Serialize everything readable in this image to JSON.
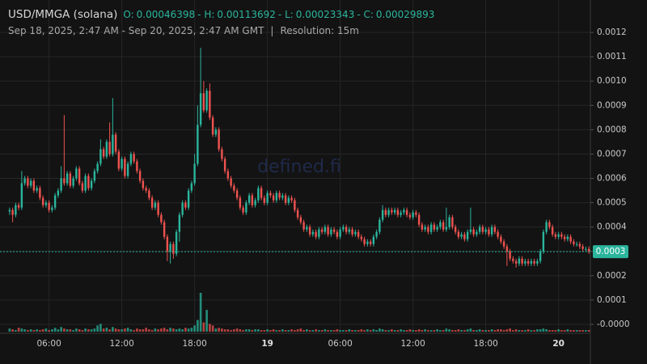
{
  "header": {
    "symbol": "USD/MMGA (solana)",
    "ohlc": [
      {
        "label": "O:",
        "value": 0.00046398
      },
      {
        "label": "- H:",
        "value": 0.00113692
      },
      {
        "label": "- L:",
        "value": 0.00023343
      },
      {
        "label": "- C:",
        "value": 0.00029893
      }
    ],
    "range": "Sep 18, 2025, 2:47 AM - Sep 20, 2025, 2:47 AM GMT",
    "separator": "|",
    "resolution": "Resolution: 15m"
  },
  "chart_data": {
    "type": "candlestick",
    "watermark": "defined.fi",
    "up_color": "#2bb59d",
    "down_color": "#ef5350",
    "grid": true,
    "ylim": [
      -3e-05,
      0.0013
    ],
    "yticks": [
      0.0012,
      0.0011,
      {
        "value": 0.001,
        "label": "0.0010"
      },
      0.0009,
      0.0008,
      0.0007,
      0.0006,
      0.0005,
      0.0004,
      0.0003,
      0.0002,
      0.0001,
      {
        "value": 0,
        "label": "-0.0000"
      }
    ],
    "xticks": [
      {
        "value": 13,
        "label": "06:00"
      },
      {
        "value": 37,
        "label": "12:00"
      },
      {
        "value": 61,
        "label": "18:00"
      },
      {
        "value": 85,
        "label": "19"
      },
      {
        "value": 109,
        "label": "06:00"
      },
      {
        "value": 133,
        "label": "12:00"
      },
      {
        "value": 157,
        "label": "18:00"
      },
      {
        "value": 181,
        "label": "20"
      }
    ],
    "last_label": "0.0003",
    "open": [
      0.00046398,
      0.00047,
      0.00045,
      0.00049,
      0.00048,
      0.00058,
      0.0006,
      0.00057,
      0.00059,
      0.00055,
      0.00056,
      0.00052,
      0.00049,
      0.0005,
      0.00047,
      0.00048,
      0.00053,
      0.00055,
      0.0006,
      0.00058,
      0.00062,
      0.00057,
      0.0006,
      0.00064,
      0.00058,
      0.00055,
      0.00061,
      0.00056,
      0.00059,
      0.00063,
      0.00066,
      0.00072,
      0.00069,
      0.00075,
      0.0007,
      0.00078,
      0.00071,
      0.00064,
      0.00068,
      0.00061,
      0.00066,
      0.0007,
      0.00067,
      0.00063,
      0.00059,
      0.00056,
      0.00055,
      0.00052,
      0.00048,
      0.0005,
      0.00045,
      0.00042,
      0.00036,
      0.0003,
      0.00033,
      0.00029,
      0.00038,
      0.00045,
      0.0005,
      0.00048,
      0.00055,
      0.00058,
      0.00066,
      0.00082,
      0.00095,
      0.00088,
      0.00096,
      0.00085,
      0.00078,
      0.0008,
      0.00072,
      0.00068,
      0.00063,
      0.0006,
      0.00057,
      0.00055,
      0.00052,
      0.00048,
      0.00046,
      0.0005,
      0.00053,
      0.00049,
      0.00051,
      0.00056,
      0.00052,
      0.0005,
      0.00054,
      0.00053,
      0.00051,
      0.00054,
      0.00052,
      0.00053,
      0.0005,
      0.00052,
      0.00051,
      0.00047,
      0.00044,
      0.00042,
      0.00039,
      0.0004,
      0.00037,
      0.00038,
      0.00036,
      0.00039,
      0.00038,
      0.0004,
      0.00037,
      0.00039,
      0.00038,
      0.00036,
      0.00039,
      0.0004,
      0.00038,
      0.00039,
      0.00037,
      0.00038,
      0.00036,
      0.00035,
      0.00033,
      0.00034,
      0.00033,
      0.00036,
      0.00038,
      0.00043,
      0.00047,
      0.00045,
      0.00047,
      0.00046,
      0.00047,
      0.00045,
      0.00046,
      0.00047,
      0.00045,
      0.00044,
      0.00046,
      0.00045,
      0.00041,
      0.00039,
      0.0004,
      0.00038,
      0.00041,
      0.00039,
      0.0004,
      0.00042,
      0.00039,
      0.0004,
      0.00044,
      0.0004,
      0.00038,
      0.00036,
      0.00037,
      0.00035,
      0.00038,
      0.00039,
      0.00037,
      0.00038,
      0.0004,
      0.00038,
      0.00039,
      0.00037,
      0.0004,
      0.00038,
      0.00036,
      0.00034,
      0.00032,
      0.0003,
      0.00027,
      0.00026,
      0.00025,
      0.00027,
      0.00025,
      0.00026,
      0.00025,
      0.00026,
      0.00025,
      0.00026,
      0.0003,
      0.00038,
      0.00042,
      0.0004,
      0.00037,
      0.00036,
      0.00037,
      0.00036,
      0.00035,
      0.00036,
      0.00034,
      0.00033,
      0.00033,
      0.00032,
      0.00031,
      0.00031
    ],
    "high": [
      0.00048,
      0.00048,
      0.0005,
      0.0005,
      0.00063,
      0.00061,
      0.00061,
      0.0006,
      0.0006,
      0.00057,
      0.00057,
      0.00053,
      0.00051,
      0.00051,
      0.00049,
      0.00054,
      0.00056,
      0.00065,
      0.00086,
      0.00063,
      0.00063,
      0.00061,
      0.00065,
      0.00065,
      0.00059,
      0.00062,
      0.00062,
      0.0006,
      0.00064,
      0.00067,
      0.00076,
      0.00073,
      0.00076,
      0.00083,
      0.00093,
      0.00079,
      0.00072,
      0.00069,
      0.00069,
      0.00067,
      0.00071,
      0.00071,
      0.00068,
      0.00064,
      0.0006,
      0.00057,
      0.00056,
      0.00053,
      0.00051,
      0.00051,
      0.00046,
      0.00043,
      0.00037,
      0.00034,
      0.00034,
      0.00039,
      0.00046,
      0.00051,
      0.00051,
      0.00056,
      0.00059,
      0.0007,
      0.0009,
      0.00113692,
      0.001,
      0.00097,
      0.00099,
      0.00086,
      0.00081,
      0.00081,
      0.00073,
      0.00069,
      0.00064,
      0.00061,
      0.00058,
      0.00056,
      0.00053,
      0.00049,
      0.00051,
      0.00054,
      0.00054,
      0.00052,
      0.00057,
      0.00057,
      0.00053,
      0.00055,
      0.00055,
      0.00054,
      0.00055,
      0.00055,
      0.00054,
      0.00054,
      0.00053,
      0.00053,
      0.00052,
      0.00048,
      0.00045,
      0.00043,
      0.00041,
      0.00041,
      0.00039,
      0.00039,
      0.0004,
      0.0004,
      0.00041,
      0.00041,
      0.0004,
      0.0004,
      0.00039,
      0.0004,
      0.00041,
      0.00041,
      0.0004,
      0.0004,
      0.00039,
      0.00039,
      0.00037,
      0.00036,
      0.00035,
      0.00035,
      0.00037,
      0.00039,
      0.00044,
      0.00049,
      0.00048,
      0.00048,
      0.00048,
      0.00048,
      0.00048,
      0.00047,
      0.00048,
      0.00048,
      0.00046,
      0.00047,
      0.00047,
      0.00046,
      0.00042,
      0.00041,
      0.00041,
      0.00042,
      0.00042,
      0.00041,
      0.00043,
      0.00043,
      0.00048,
      0.00045,
      0.00045,
      0.00041,
      0.00039,
      0.00038,
      0.00038,
      0.00039,
      0.00048,
      0.0004,
      0.00039,
      0.00041,
      0.00041,
      0.0004,
      0.0004,
      0.00041,
      0.00041,
      0.00039,
      0.00037,
      0.00035,
      0.00033,
      0.00031,
      0.00028,
      0.00027,
      0.00028,
      0.00028,
      0.00027,
      0.00027,
      0.00027,
      0.00027,
      0.00027,
      0.00031,
      0.00039,
      0.00043,
      0.00043,
      0.00041,
      0.00038,
      0.00038,
      0.00038,
      0.00037,
      0.00037,
      0.00037,
      0.00035,
      0.00034,
      0.00034,
      0.00033,
      0.00032,
      0.00032
    ],
    "low": [
      0.00045,
      0.00042,
      0.00044,
      0.00047,
      0.00047,
      0.00057,
      0.00056,
      0.00056,
      0.00054,
      0.00054,
      0.00051,
      0.00048,
      0.00048,
      0.00046,
      0.00046,
      0.00047,
      0.00052,
      0.00054,
      0.00057,
      0.00057,
      0.00056,
      0.00056,
      0.00059,
      0.00057,
      0.00054,
      0.00054,
      0.00055,
      0.00055,
      0.00058,
      0.00062,
      0.00065,
      0.00068,
      0.00068,
      0.00069,
      0.00069,
      0.0007,
      0.00063,
      0.00063,
      0.0006,
      0.0006,
      0.00065,
      0.00066,
      0.00062,
      0.00058,
      0.00055,
      0.00054,
      0.00051,
      0.00047,
      0.00047,
      0.00044,
      0.00041,
      0.00035,
      0.00026,
      0.00025,
      0.00027,
      0.00028,
      0.00034,
      0.00044,
      0.00047,
      0.00047,
      0.00054,
      0.00057,
      0.00065,
      0.00081,
      0.00087,
      0.00087,
      0.00084,
      0.00077,
      0.00077,
      0.00071,
      0.00067,
      0.00062,
      0.00059,
      0.00056,
      0.00054,
      0.00051,
      0.00047,
      0.00045,
      0.00045,
      0.00049,
      0.00048,
      0.00048,
      0.0005,
      0.00051,
      0.00049,
      0.00049,
      0.00052,
      0.0005,
      0.0005,
      0.00051,
      0.00051,
      0.00049,
      0.00049,
      0.0005,
      0.00046,
      0.00043,
      0.00041,
      0.00038,
      0.00038,
      0.00036,
      0.00036,
      0.00035,
      0.00035,
      0.00037,
      0.00037,
      0.00036,
      0.00036,
      0.00037,
      0.00035,
      0.00035,
      0.00038,
      0.00037,
      0.00037,
      0.00036,
      0.00036,
      0.00035,
      0.00034,
      0.00032,
      0.00032,
      0.00032,
      0.00032,
      0.00035,
      0.00037,
      0.00042,
      0.00044,
      0.00044,
      0.00045,
      0.00045,
      0.00044,
      0.00044,
      0.00045,
      0.00044,
      0.00043,
      0.00043,
      0.00044,
      0.0004,
      0.00038,
      0.00038,
      0.00037,
      0.00037,
      0.00038,
      0.00038,
      0.00039,
      0.00038,
      0.00038,
      0.00039,
      0.00039,
      0.00037,
      0.00035,
      0.00035,
      0.00034,
      0.00034,
      0.00037,
      0.00036,
      0.00036,
      0.00037,
      0.00037,
      0.00037,
      0.00036,
      0.00036,
      0.00037,
      0.00035,
      0.00033,
      0.00031,
      0.00024,
      0.00026,
      0.00025,
      0.00023343,
      0.00024,
      0.00024,
      0.00024,
      0.00024,
      0.00024,
      0.00024,
      0.00024,
      0.00025,
      0.00029,
      0.00037,
      0.00039,
      0.00036,
      0.00035,
      0.00035,
      0.00035,
      0.00034,
      0.00034,
      0.00033,
      0.00032,
      0.00032,
      0.00031,
      0.0003,
      0.0003,
      0.00029
    ],
    "close": [
      0.00047,
      0.00045,
      0.00049,
      0.00048,
      0.00058,
      0.0006,
      0.00057,
      0.00059,
      0.00055,
      0.00056,
      0.00052,
      0.00049,
      0.0005,
      0.00047,
      0.00048,
      0.00053,
      0.00055,
      0.0006,
      0.00058,
      0.00062,
      0.00057,
      0.0006,
      0.00064,
      0.00058,
      0.00055,
      0.00061,
      0.00056,
      0.00059,
      0.00063,
      0.00066,
      0.00072,
      0.00069,
      0.00075,
      0.0007,
      0.00078,
      0.00071,
      0.00064,
      0.00068,
      0.00061,
      0.00066,
      0.0007,
      0.00067,
      0.00063,
      0.00059,
      0.00056,
      0.00055,
      0.00052,
      0.00048,
      0.0005,
      0.00045,
      0.00042,
      0.00036,
      0.0003,
      0.00033,
      0.00029,
      0.00038,
      0.00045,
      0.0005,
      0.00048,
      0.00055,
      0.00058,
      0.00066,
      0.00082,
      0.00095,
      0.00088,
      0.00096,
      0.00085,
      0.00078,
      0.0008,
      0.00072,
      0.00068,
      0.00063,
      0.0006,
      0.00057,
      0.00055,
      0.00052,
      0.00048,
      0.00046,
      0.0005,
      0.00053,
      0.00049,
      0.00051,
      0.00056,
      0.00052,
      0.0005,
      0.00054,
      0.00053,
      0.00051,
      0.00054,
      0.00052,
      0.00053,
      0.0005,
      0.00052,
      0.00051,
      0.00047,
      0.00044,
      0.00042,
      0.00039,
      0.0004,
      0.00037,
      0.00038,
      0.00036,
      0.00039,
      0.00038,
      0.0004,
      0.00037,
      0.00039,
      0.00038,
      0.00036,
      0.00039,
      0.0004,
      0.00038,
      0.00039,
      0.00037,
      0.00038,
      0.00036,
      0.00035,
      0.00033,
      0.00034,
      0.00033,
      0.00036,
      0.00038,
      0.00043,
      0.00047,
      0.00045,
      0.00047,
      0.00046,
      0.00047,
      0.00045,
      0.00046,
      0.00047,
      0.00045,
      0.00044,
      0.00046,
      0.00045,
      0.00041,
      0.00039,
      0.0004,
      0.00038,
      0.00041,
      0.00039,
      0.0004,
      0.00042,
      0.00039,
      0.0004,
      0.00044,
      0.0004,
      0.00038,
      0.00036,
      0.00037,
      0.00035,
      0.00038,
      0.00039,
      0.00037,
      0.00038,
      0.0004,
      0.00038,
      0.00039,
      0.00037,
      0.0004,
      0.00038,
      0.00036,
      0.00034,
      0.00032,
      0.0003,
      0.00027,
      0.00026,
      0.00025,
      0.00027,
      0.00025,
      0.00026,
      0.00025,
      0.00026,
      0.00025,
      0.00026,
      0.0003,
      0.00038,
      0.00042,
      0.0004,
      0.00037,
      0.00036,
      0.00037,
      0.00036,
      0.00035,
      0.00036,
      0.00034,
      0.00033,
      0.00033,
      0.00032,
      0.00031,
      0.00031,
      0.00029893
    ],
    "volume": [
      4,
      3,
      2,
      5,
      4,
      3,
      2,
      3,
      2,
      3,
      2,
      3,
      4,
      2,
      3,
      5,
      3,
      6,
      4,
      3,
      3,
      2,
      4,
      3,
      2,
      4,
      3,
      3,
      4,
      8,
      10,
      4,
      5,
      3,
      6,
      4,
      3,
      3,
      4,
      5,
      3,
      2,
      4,
      3,
      3,
      5,
      3,
      2,
      4,
      3,
      4,
      5,
      3,
      5,
      4,
      3,
      4,
      3,
      5,
      4,
      5,
      8,
      15,
      50,
      12,
      28,
      10,
      8,
      4,
      5,
      4,
      3,
      3,
      2,
      3,
      4,
      3,
      2,
      3,
      3,
      2,
      3,
      3,
      2,
      2,
      3,
      2,
      3,
      2,
      2,
      3,
      2,
      2,
      3,
      2,
      3,
      4,
      2,
      3,
      2,
      2,
      3,
      2,
      2,
      3,
      2,
      2,
      2,
      3,
      2,
      2,
      2,
      3,
      2,
      2,
      2,
      3,
      2,
      3,
      2,
      3,
      2,
      4,
      3,
      2,
      2,
      3,
      2,
      2,
      3,
      2,
      2,
      3,
      2,
      2,
      3,
      2,
      3,
      2,
      2,
      2,
      3,
      2,
      2,
      4,
      3,
      2,
      2,
      3,
      2,
      2,
      3,
      4,
      2,
      2,
      3,
      2,
      2,
      2,
      3,
      2,
      3,
      3,
      2,
      3,
      4,
      2,
      3,
      2,
      2,
      2,
      3,
      2,
      2,
      3,
      3,
      4,
      3,
      2,
      2,
      2,
      3,
      2,
      2,
      3,
      2,
      2,
      2,
      2,
      2,
      2,
      2
    ]
  }
}
